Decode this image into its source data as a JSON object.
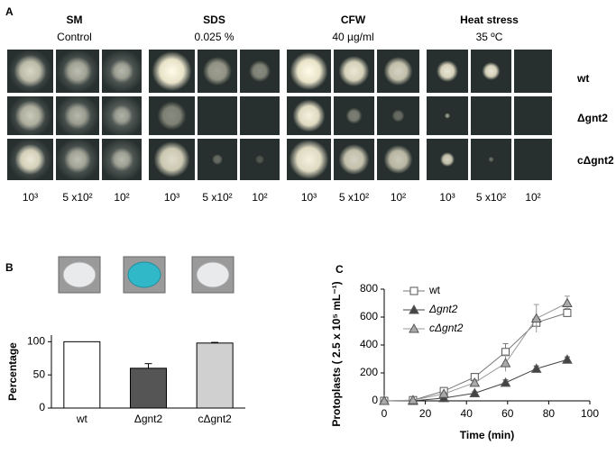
{
  "panel_a": {
    "label": "A",
    "conditions": [
      {
        "title": "SM",
        "subtitle": "Control"
      },
      {
        "title": "SDS",
        "subtitle": "0.025 %"
      },
      {
        "title": "CFW",
        "subtitle": "40 µg/ml"
      },
      {
        "title": "Heat  stress",
        "subtitle": "35 ºC"
      }
    ],
    "strains": [
      "wt",
      "Δgnt2",
      "cΔgnt2"
    ],
    "dilutions": [
      "10³",
      "5 x10²",
      "10²"
    ]
  },
  "chart_data": [
    {
      "type": "bar",
      "panel_label": "B",
      "ylabel": "Percentage",
      "categories": [
        "wt",
        "Δgnt2",
        "cΔgnt2"
      ],
      "values": [
        100,
        60,
        98
      ],
      "errors": [
        0,
        7,
        1
      ],
      "colors": [
        "#ffffff",
        "#555555",
        "#d0d0d0"
      ],
      "ylim": [
        0,
        110
      ],
      "yticks": [
        0,
        50,
        100
      ]
    },
    {
      "type": "line",
      "panel_label": "C",
      "xlabel": "Time (min)",
      "ylabel": "Protoplasts ( 2.5 x 10⁵ mL⁻¹)",
      "x": [
        0,
        14,
        29,
        44,
        59,
        74,
        89
      ],
      "series": [
        {
          "name": "wt",
          "color": "#777777",
          "marker": "square-open",
          "values": [
            0,
            5,
            70,
            170,
            350,
            560,
            630
          ],
          "errors": [
            5,
            5,
            15,
            25,
            60,
            40,
            30
          ]
        },
        {
          "name": "Δgnt2",
          "color": "#444444",
          "marker": "triangle-dark",
          "values": [
            0,
            0,
            20,
            55,
            130,
            230,
            295
          ],
          "errors": [
            5,
            5,
            5,
            10,
            20,
            20,
            20
          ]
        },
        {
          "name": "cΔgnt2",
          "color": "#999999",
          "marker": "triangle-gray",
          "values": [
            0,
            5,
            50,
            130,
            270,
            590,
            700
          ],
          "errors": [
            5,
            5,
            10,
            20,
            60,
            100,
            50
          ]
        }
      ],
      "xlim": [
        0,
        100
      ],
      "xticks": [
        0,
        20,
        40,
        60,
        80,
        100
      ],
      "ylim": [
        0,
        800
      ],
      "yticks": [
        0,
        200,
        400,
        600,
        800
      ],
      "legend": "upper-left"
    }
  ]
}
